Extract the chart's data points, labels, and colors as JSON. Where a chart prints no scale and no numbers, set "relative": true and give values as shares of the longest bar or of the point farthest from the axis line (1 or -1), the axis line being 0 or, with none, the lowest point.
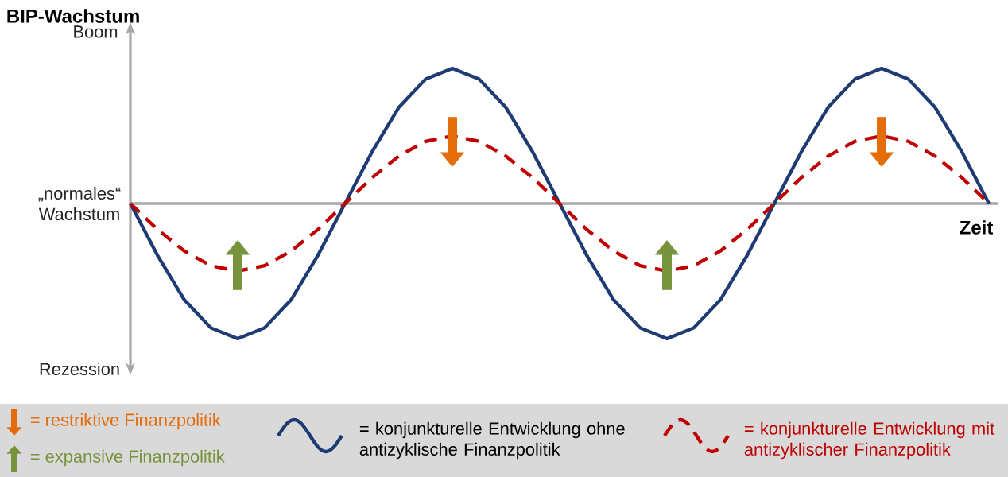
{
  "chart_data": {
    "type": "line",
    "relative": true,
    "ylabel": "BIP-Wachstum",
    "xlabel": "Zeit",
    "legend": "bottom",
    "marker": "none",
    "line_style": "solid",
    "categories": [
      null,
      null,
      null,
      null,
      null,
      null,
      null,
      null,
      null,
      null,
      null,
      null,
      null,
      null,
      null,
      null,
      null,
      null,
      null,
      null,
      null,
      null,
      null,
      null,
      null,
      null,
      null,
      null,
      null,
      null,
      null,
      null,
      null
    ],
    "series": [
      {
        "name": "= konjunkturelle  Entwicklung ohne antizyklische Finanzpolitik",
        "color": "#1f3b73",
        "values": [
          0,
          -0.38,
          -0.71,
          -0.92,
          -1,
          -0.92,
          -0.71,
          -0.38,
          0,
          0.38,
          0.71,
          0.92,
          1,
          0.92,
          0.71,
          0.38,
          0,
          -0.38,
          -0.71,
          -0.92,
          -1,
          -0.92,
          -0.71,
          -0.38,
          0,
          0.38,
          0.71,
          0.92,
          1,
          0.92,
          0.71,
          0.38,
          0
        ]
      },
      {
        "name": "= konjunkturelle Entwicklung mit antizyklischer Finanzpolitik",
        "color": "#c00000",
        "line_style": "dashed",
        "values": [
          0,
          -0.19,
          -0.35,
          -0.46,
          -0.5,
          -0.46,
          -0.35,
          -0.19,
          0,
          0.19,
          0.35,
          0.46,
          0.5,
          0.46,
          0.35,
          0.19,
          0,
          -0.19,
          -0.35,
          -0.46,
          -0.5,
          -0.46,
          -0.35,
          -0.19,
          0,
          0.19,
          0.35,
          0.46,
          0.5,
          0.46,
          0.35,
          0.19,
          0
        ]
      }
    ],
    "annotations": [
      "Boom",
      "„normales“ Wachstum",
      "Rezession",
      "= restriktive Finanzpolitik",
      "= expansive Finanzpolitik"
    ]
  }
}
